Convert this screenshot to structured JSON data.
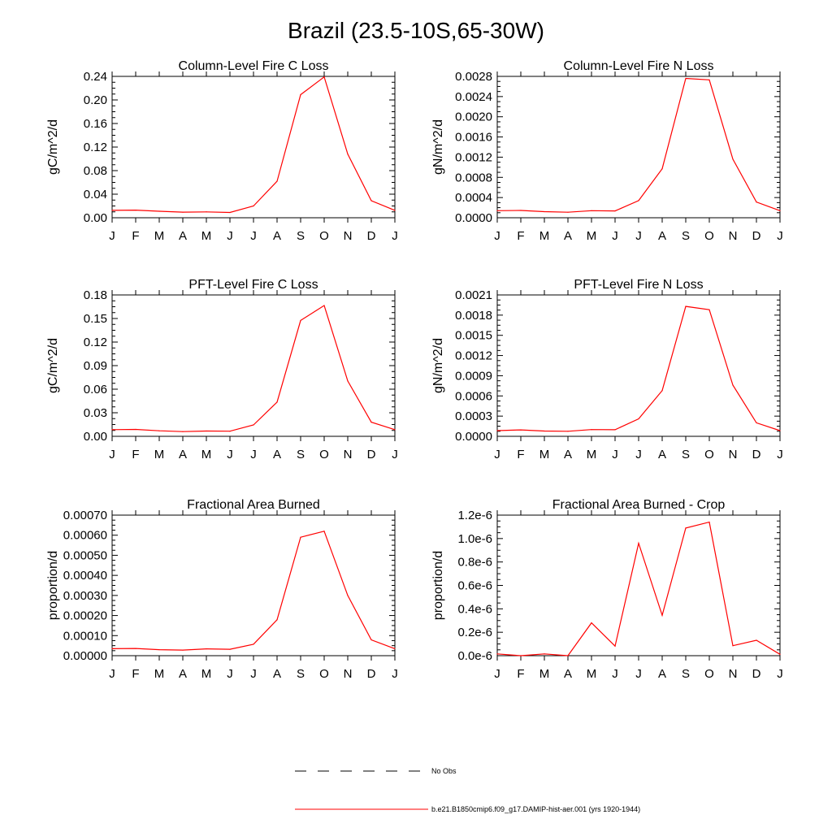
{
  "figure_title": "Brazil (23.5-10S,65-30W)",
  "months": [
    "J",
    "F",
    "M",
    "A",
    "M",
    "J",
    "J",
    "A",
    "S",
    "O",
    "N",
    "D",
    "J"
  ],
  "line_color": "#ff0000",
  "legend": {
    "placement": "bottom-center",
    "entries": [
      {
        "label": "No Obs",
        "style": "dashed",
        "color": "#000000"
      },
      {
        "label": "b.e21.B1850cmip6.f09_g17.DAMIP-hist-aer.001 (yrs 1920-1944)",
        "style": "solid",
        "color": "#ff0000"
      }
    ]
  },
  "chart_data": [
    {
      "type": "line",
      "title": "Column-Level Fire C Loss",
      "ylabel": "gC/m^2/d",
      "ylim": [
        0,
        0.24
      ],
      "yticks": [
        "0.00",
        "0.04",
        "0.08",
        "0.12",
        "0.16",
        "0.20",
        "0.24"
      ],
      "categories": [
        "J",
        "F",
        "M",
        "A",
        "M",
        "J",
        "J",
        "A",
        "S",
        "O",
        "N",
        "D",
        "J"
      ],
      "series": [
        {
          "values": [
            0.0125,
            0.013,
            0.011,
            0.0095,
            0.01,
            0.009,
            0.02,
            0.062,
            0.209,
            0.239,
            0.108,
            0.029,
            0.0125
          ]
        }
      ]
    },
    {
      "type": "line",
      "title": "Column-Level Fire N Loss",
      "ylabel": "gN/m^2/d",
      "ylim": [
        0,
        0.0028
      ],
      "yticks": [
        "0.0000",
        "0.0004",
        "0.0008",
        "0.0012",
        "0.0016",
        "0.0020",
        "0.0024",
        "0.0028"
      ],
      "categories": [
        "J",
        "F",
        "M",
        "A",
        "M",
        "J",
        "J",
        "A",
        "S",
        "O",
        "N",
        "D",
        "J"
      ],
      "series": [
        {
          "values": [
            0.00014,
            0.000145,
            0.00012,
            0.00011,
            0.00014,
            0.000135,
            0.00034,
            0.00097,
            0.00276,
            0.00273,
            0.00116,
            0.00031,
            0.00014
          ]
        }
      ]
    },
    {
      "type": "line",
      "title": "PFT-Level Fire C Loss",
      "ylabel": "gC/m^2/d",
      "ylim": [
        0,
        0.18
      ],
      "yticks": [
        "0.00",
        "0.03",
        "0.06",
        "0.09",
        "0.12",
        "0.15",
        "0.18"
      ],
      "categories": [
        "J",
        "F",
        "M",
        "A",
        "M",
        "J",
        "J",
        "A",
        "S",
        "O",
        "N",
        "D",
        "J"
      ],
      "series": [
        {
          "values": [
            0.0085,
            0.0088,
            0.007,
            0.006,
            0.0067,
            0.0065,
            0.0145,
            0.0435,
            0.1475,
            0.1665,
            0.0705,
            0.018,
            0.0085
          ]
        }
      ]
    },
    {
      "type": "line",
      "title": "PFT-Level Fire N Loss",
      "ylabel": "gN/m^2/d",
      "ylim": [
        0,
        0.0021
      ],
      "yticks": [
        "0.0000",
        "0.0003",
        "0.0006",
        "0.0009",
        "0.0012",
        "0.0015",
        "0.0018",
        "0.0021"
      ],
      "categories": [
        "J",
        "F",
        "M",
        "A",
        "M",
        "J",
        "J",
        "A",
        "S",
        "O",
        "N",
        "D",
        "J"
      ],
      "series": [
        {
          "values": [
            8.5e-05,
            9.5e-05,
            7.8e-05,
            7.5e-05,
            0.0001,
            9.8e-05,
            0.00026,
            0.00068,
            0.00193,
            0.00188,
            0.00076,
            0.0002,
            8.5e-05
          ]
        }
      ]
    },
    {
      "type": "line",
      "title": "Fractional Area Burned",
      "ylabel": "proportion/d",
      "ylim": [
        0,
        0.0007
      ],
      "yticks": [
        "0.00000",
        "0.00010",
        "0.00020",
        "0.00030",
        "0.00040",
        "0.00050",
        "0.00060",
        "0.00070"
      ],
      "categories": [
        "J",
        "F",
        "M",
        "A",
        "M",
        "J",
        "J",
        "A",
        "S",
        "O",
        "N",
        "D",
        "J"
      ],
      "series": [
        {
          "values": [
            3.5e-05,
            3.6e-05,
            3e-05,
            2.8e-05,
            3.4e-05,
            3.2e-05,
            5.7e-05,
            0.000179,
            0.00059,
            0.00062,
            0.0003,
            7.9e-05,
            3.5e-05
          ]
        }
      ]
    },
    {
      "type": "line",
      "title": "Fractional Area Burned - Crop",
      "ylabel": "proportion/d",
      "ylim": [
        0,
        1.2e-06
      ],
      "yticks": [
        "0.0e-6",
        "0.2e-6",
        "0.4e-6",
        "0.6e-6",
        "0.8e-6",
        "1.0e-6",
        "1.2e-6"
      ],
      "categories": [
        "J",
        "F",
        "M",
        "A",
        "M",
        "J",
        "J",
        "A",
        "S",
        "O",
        "N",
        "D",
        "J"
      ],
      "series": [
        {
          "values": [
            1.5e-08,
            0,
            1.5e-08,
            0,
            2.8e-07,
            8.2e-08,
            9.6e-07,
            3.45e-07,
            1.09e-06,
            1.14e-06,
            8.5e-08,
            1.32e-07,
            1.2e-08
          ]
        }
      ]
    }
  ]
}
